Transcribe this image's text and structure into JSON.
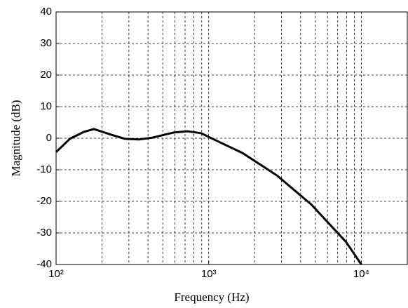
{
  "chart_data": {
    "type": "line",
    "x_label": "Frequency (Hz)",
    "y_label": "Magnitude (dB)",
    "xscale": "log",
    "grid": true,
    "xlim": [
      100,
      20000
    ],
    "ylim": [
      -40,
      40
    ],
    "xticks": [
      {
        "value": 100,
        "label": "10²"
      },
      {
        "value": 1000,
        "label": "10³"
      },
      {
        "value": 10000,
        "label": "10⁴"
      }
    ],
    "yticks": [
      -40,
      -30,
      -20,
      -10,
      0,
      10,
      20,
      30,
      40
    ],
    "x": [
      100,
      123,
      152,
      177,
      230,
      283,
      349,
      430,
      588,
      724,
      891,
      1000,
      1665,
      2800,
      4700,
      7950,
      10000
    ],
    "series": [
      {
        "color": "#000000",
        "values": [
          -4.4,
          -0.2,
          2.0,
          2.9,
          1.1,
          -0.2,
          -0.4,
          0.2,
          1.8,
          2.2,
          1.6,
          0.4,
          -4.7,
          -11.8,
          -21,
          -32.9,
          -40
        ]
      }
    ]
  }
}
